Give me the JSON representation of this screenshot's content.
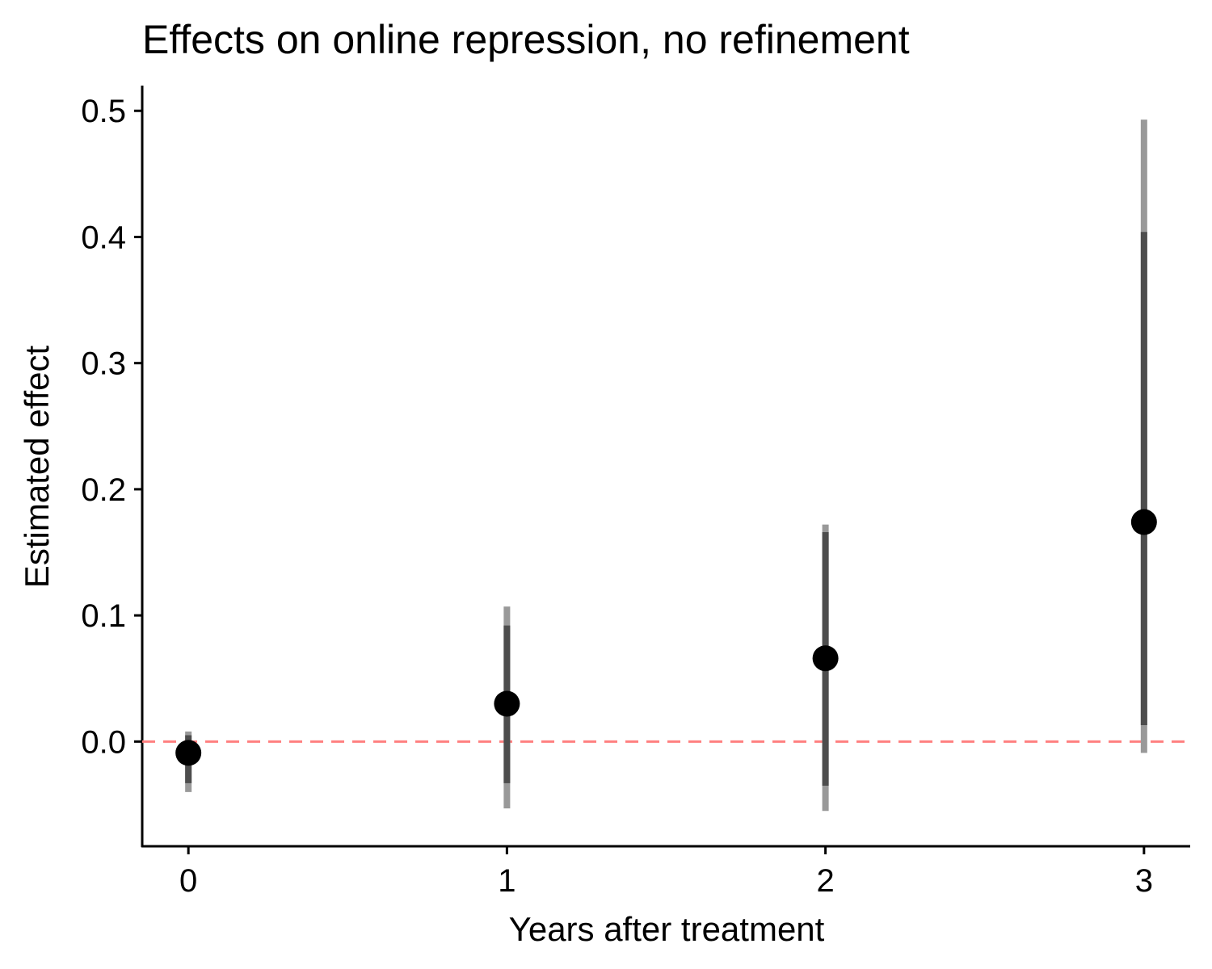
{
  "chart_data": {
    "type": "scatter",
    "title": "Effects on online repression, no refinement",
    "xlabel": "Years after treatment",
    "ylabel": "Estimated effect",
    "xlim": [
      -0.145,
      3.145
    ],
    "ylim": [
      -0.083,
      0.52
    ],
    "x_ticks": [
      0,
      1,
      2,
      3
    ],
    "x_tick_labels": [
      "0",
      "1",
      "2",
      "3"
    ],
    "y_ticks": [
      0.0,
      0.1,
      0.2,
      0.3,
      0.4,
      0.5
    ],
    "y_tick_labels": [
      "0.0",
      "0.1",
      "0.2",
      "0.3",
      "0.4",
      "0.5"
    ],
    "reference_line": {
      "y": 0.0,
      "style": "dashed",
      "color": "#ff8080"
    },
    "grid": false,
    "legend": "none",
    "colors": {
      "point": "#000000",
      "inner_ci": "#4d4d4d",
      "outer_ci": "#999999"
    },
    "points": [
      {
        "x": 0,
        "estimate": -0.009,
        "ci90": [
          -0.033,
          0.005
        ],
        "ci95": [
          -0.04,
          0.008
        ]
      },
      {
        "x": 1,
        "estimate": 0.03,
        "ci90": [
          -0.033,
          0.092
        ],
        "ci95": [
          -0.053,
          0.107
        ]
      },
      {
        "x": 2,
        "estimate": 0.066,
        "ci90": [
          -0.035,
          0.166
        ],
        "ci95": [
          -0.055,
          0.172
        ]
      },
      {
        "x": 3,
        "estimate": 0.174,
        "ci90": [
          0.013,
          0.404
        ],
        "ci95": [
          -0.009,
          0.493
        ]
      }
    ]
  }
}
